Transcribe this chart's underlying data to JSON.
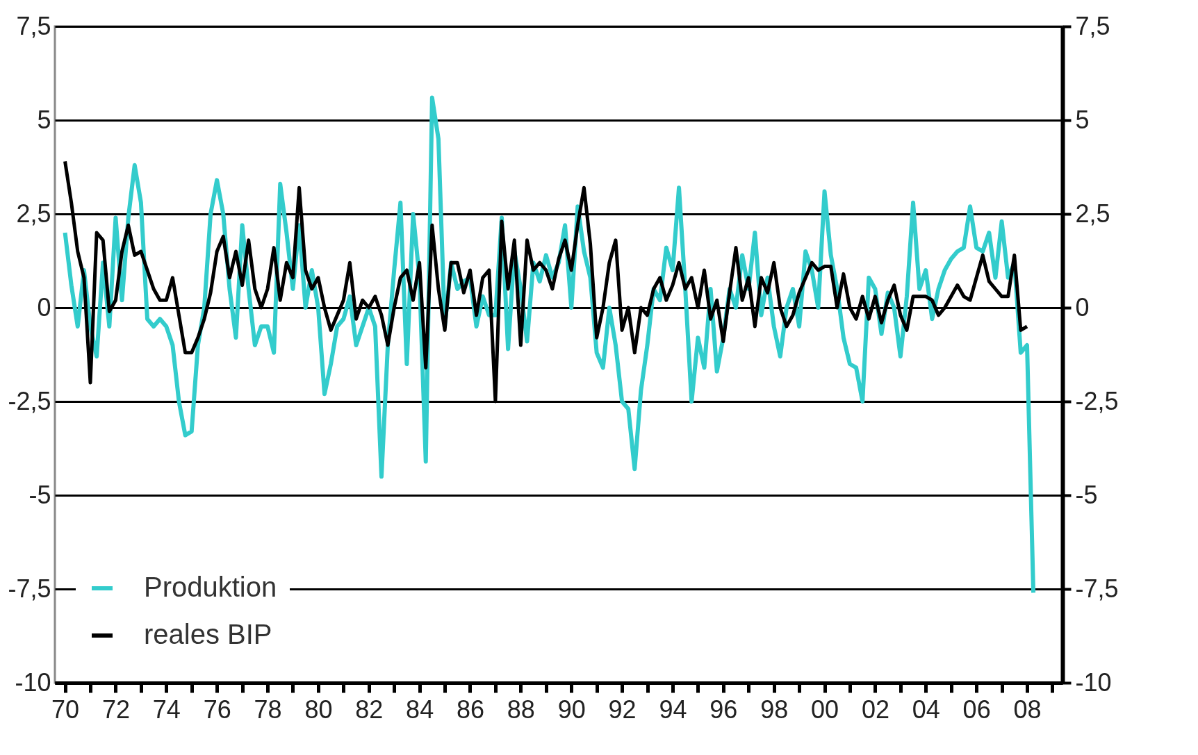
{
  "chart_data": {
    "type": "line",
    "legend": "bottom left",
    "grid": "y",
    "line_style": "solid",
    "x": [
      1970,
      1970.25,
      1970.5,
      1970.75,
      1971,
      1971.25,
      1971.5,
      1971.75,
      1972,
      1972.25,
      1972.5,
      1972.75,
      1973,
      1973.25,
      1973.5,
      1973.75,
      1974,
      1974.25,
      1974.5,
      1974.75,
      1975,
      1975.25,
      1975.5,
      1975.75,
      1976,
      1976.25,
      1976.5,
      1976.75,
      1977,
      1977.25,
      1977.5,
      1977.75,
      1978,
      1978.25,
      1978.5,
      1978.75,
      1979,
      1979.25,
      1979.5,
      1979.75,
      1980,
      1980.25,
      1980.5,
      1980.75,
      1981,
      1981.25,
      1981.5,
      1981.75,
      1982,
      1982.25,
      1982.5,
      1982.75,
      1983,
      1983.25,
      1983.5,
      1983.75,
      1984,
      1984.25,
      1984.5,
      1984.75,
      1985,
      1985.25,
      1985.5,
      1985.75,
      1986,
      1986.25,
      1986.5,
      1986.75,
      1987,
      1987.25,
      1987.5,
      1987.75,
      1988,
      1988.25,
      1988.5,
      1988.75,
      1989,
      1989.25,
      1989.5,
      1989.75,
      1990,
      1990.25,
      1990.5,
      1990.75,
      1991,
      1991.25,
      1991.5,
      1991.75,
      1992,
      1992.25,
      1992.5,
      1992.75,
      1993,
      1993.25,
      1993.5,
      1993.75,
      1994,
      1994.25,
      1994.5,
      1994.75,
      1995,
      1995.25,
      1995.5,
      1995.75,
      1996,
      1996.25,
      1996.5,
      1996.75,
      1997,
      1997.25,
      1997.5,
      1997.75,
      1998,
      1998.25,
      1998.5,
      1998.75,
      1999,
      1999.25,
      1999.5,
      1999.75,
      2000,
      2000.25,
      2000.5,
      2000.75,
      2001,
      2001.25,
      2001.5,
      2001.75,
      2002,
      2002.25,
      2002.5,
      2002.75,
      2003,
      2003.25,
      2003.5,
      2003.75,
      2004,
      2004.25,
      2004.5,
      2004.75,
      2005,
      2005.25,
      2005.5,
      2005.75,
      2006,
      2006.25,
      2006.5,
      2006.75,
      2007,
      2007.25,
      2007.5,
      2007.75,
      2008,
      2008.25
    ],
    "series": [
      {
        "name": "Produktion",
        "color": "#33cccc",
        "values": [
          2.0,
          0.6,
          -0.5,
          1.0,
          -0.5,
          -1.3,
          1.2,
          -0.5,
          2.4,
          0.2,
          2.4,
          3.8,
          2.8,
          -0.3,
          -0.5,
          -0.3,
          -0.5,
          -1.0,
          -2.5,
          -3.4,
          -3.3,
          -1.0,
          0.0,
          2.5,
          3.4,
          2.5,
          0.5,
          -0.8,
          2.2,
          0.5,
          -1.0,
          -0.5,
          -0.5,
          -1.2,
          3.3,
          2.0,
          0.5,
          2.2,
          0.0,
          1.0,
          0.0,
          -2.3,
          -1.5,
          -0.5,
          -0.3,
          0.3,
          -1.0,
          -0.5,
          0.0,
          -0.5,
          -4.5,
          -1.0,
          1.0,
          2.8,
          -1.5,
          2.5,
          0.8,
          -4.1,
          5.6,
          4.5,
          -0.5,
          1.2,
          0.5,
          0.7,
          0.8,
          -0.5,
          0.3,
          -0.2,
          -0.2,
          2.4,
          -1.1,
          1.5,
          0.5,
          -0.9,
          1.2,
          0.7,
          1.4,
          0.8,
          1.2,
          2.2,
          0.0,
          2.7,
          1.5,
          0.8,
          -1.2,
          -1.6,
          0.0,
          -1.0,
          -2.5,
          -2.7,
          -4.3,
          -2.2,
          -1.0,
          0.5,
          0.2,
          1.6,
          1.0,
          3.2,
          0.5,
          -2.5,
          -0.8,
          -1.6,
          0.5,
          -1.7,
          -0.8,
          0.5,
          0.0,
          1.4,
          0.5,
          2.0,
          -0.2,
          0.8,
          -0.5,
          -1.3,
          0.0,
          0.5,
          -0.5,
          1.5,
          1.0,
          0.0,
          3.1,
          1.4,
          0.5,
          -0.8,
          -1.5,
          -1.6,
          -2.5,
          0.8,
          0.5,
          -0.7,
          0.4,
          0.0,
          -1.3,
          0.3,
          2.8,
          0.5,
          1.0,
          -0.3,
          0.5,
          1.0,
          1.3,
          1.5,
          1.6,
          2.7,
          1.6,
          1.5,
          2.0,
          0.8,
          2.3,
          0.8,
          1.2,
          -1.2,
          -1.0,
          -7.6
        ]
      },
      {
        "name": "reales BIP",
        "color": "#000000",
        "values": [
          3.9,
          2.8,
          1.5,
          0.8,
          -2.0,
          2.0,
          1.8,
          -0.1,
          0.2,
          1.5,
          2.2,
          1.4,
          1.5,
          1.0,
          0.5,
          0.2,
          0.2,
          0.8,
          -0.2,
          -1.2,
          -1.2,
          -0.8,
          -0.3,
          0.4,
          1.5,
          1.9,
          0.8,
          1.5,
          0.6,
          1.8,
          0.5,
          0.0,
          0.5,
          1.6,
          0.2,
          1.2,
          0.8,
          3.2,
          1.0,
          0.5,
          0.8,
          0.0,
          -0.6,
          -0.2,
          0.2,
          1.2,
          -0.3,
          0.2,
          0.0,
          0.3,
          -0.2,
          -1.0,
          0.0,
          0.8,
          1.0,
          0.2,
          1.2,
          -1.6,
          2.2,
          0.5,
          -0.6,
          1.2,
          1.2,
          0.4,
          1.0,
          -0.2,
          0.8,
          1.0,
          -2.5,
          2.3,
          0.5,
          1.8,
          -1.0,
          1.8,
          1.0,
          1.2,
          1.0,
          0.5,
          1.3,
          1.8,
          1.0,
          2.2,
          3.2,
          1.7,
          -0.8,
          0.0,
          1.2,
          1.8,
          -0.6,
          0.0,
          -1.2,
          0.0,
          -0.2,
          0.5,
          0.8,
          0.2,
          0.6,
          1.2,
          0.5,
          0.8,
          0.0,
          1.0,
          -0.3,
          0.2,
          -0.9,
          0.4,
          1.6,
          0.2,
          0.8,
          -0.5,
          0.8,
          0.4,
          1.2,
          0.0,
          -0.5,
          -0.2,
          0.4,
          0.8,
          1.2,
          1.0,
          1.1,
          1.1,
          0.0,
          0.9,
          0.0,
          -0.3,
          0.3,
          -0.3,
          0.3,
          -0.4,
          0.2,
          0.6,
          -0.2,
          -0.6,
          0.3,
          0.3,
          0.3,
          0.2,
          -0.2,
          0.0,
          0.3,
          0.6,
          0.3,
          0.2,
          0.8,
          1.4,
          0.7,
          0.5,
          0.3,
          0.3,
          1.4,
          -0.6,
          -0.5,
          null
        ]
      }
    ],
    "xlim": [
      1969.6,
      2009.4
    ],
    "xticks": [
      {
        "value": 1970,
        "label": "70"
      },
      {
        "value": 1971,
        "label": null
      },
      {
        "value": 1972,
        "label": "72"
      },
      {
        "value": 1973,
        "label": null
      },
      {
        "value": 1974,
        "label": "74"
      },
      {
        "value": 1975,
        "label": null
      },
      {
        "value": 1976,
        "label": "76"
      },
      {
        "value": 1977,
        "label": null
      },
      {
        "value": 1978,
        "label": "78"
      },
      {
        "value": 1979,
        "label": null
      },
      {
        "value": 1980,
        "label": "80"
      },
      {
        "value": 1981,
        "label": null
      },
      {
        "value": 1982,
        "label": "82"
      },
      {
        "value": 1983,
        "label": null
      },
      {
        "value": 1984,
        "label": "84"
      },
      {
        "value": 1985,
        "label": null
      },
      {
        "value": 1986,
        "label": "86"
      },
      {
        "value": 1987,
        "label": null
      },
      {
        "value": 1988,
        "label": "88"
      },
      {
        "value": 1989,
        "label": null
      },
      {
        "value": 1990,
        "label": "90"
      },
      {
        "value": 1991,
        "label": null
      },
      {
        "value": 1992,
        "label": "92"
      },
      {
        "value": 1993,
        "label": null
      },
      {
        "value": 1994,
        "label": "94"
      },
      {
        "value": 1995,
        "label": null
      },
      {
        "value": 1996,
        "label": "96"
      },
      {
        "value": 1997,
        "label": null
      },
      {
        "value": 1998,
        "label": "98"
      },
      {
        "value": 1999,
        "label": null
      },
      {
        "value": 2000,
        "label": "00"
      },
      {
        "value": 2001,
        "label": null
      },
      {
        "value": 2002,
        "label": "02"
      },
      {
        "value": 2003,
        "label": null
      },
      {
        "value": 2004,
        "label": "04"
      },
      {
        "value": 2005,
        "label": null
      },
      {
        "value": 2006,
        "label": "06"
      },
      {
        "value": 2007,
        "label": null
      },
      {
        "value": 2008,
        "label": "08"
      },
      {
        "value": 2009,
        "label": null
      }
    ],
    "ylim": [
      -10,
      7.5
    ],
    "yticks": [
      -10,
      {
        "value": -7.5,
        "label": "-7,5"
      },
      -5,
      {
        "value": -2.5,
        "label": "-2,5"
      },
      0,
      {
        "value": 2.5,
        "label": "2,5"
      },
      5,
      {
        "value": 7.5,
        "label": "7,5"
      }
    ],
    "y2lim": [
      -10,
      7.5
    ],
    "y2ticks": [
      -10,
      {
        "value": -7.5,
        "label": "-7,5"
      },
      -5,
      {
        "value": -2.5,
        "label": "-2,5"
      },
      0,
      {
        "value": 2.5,
        "label": "2,5"
      },
      5,
      {
        "value": 7.5,
        "label": "7,5"
      }
    ]
  }
}
